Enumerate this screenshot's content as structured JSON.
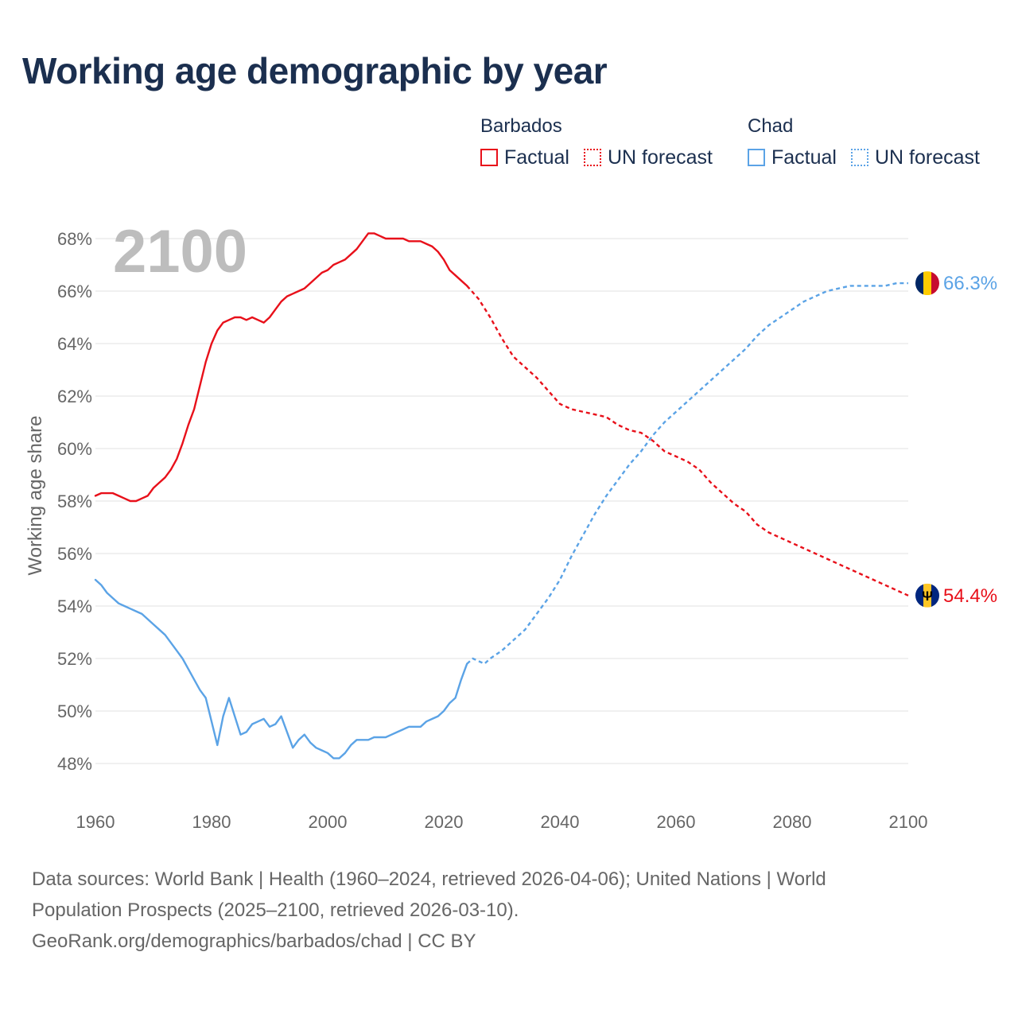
{
  "title": "Working age demographic by year",
  "year_label": "2100",
  "legend": {
    "groups": [
      {
        "name": "Barbados",
        "color": "#e8101a",
        "factual": "Factual",
        "forecast": "UN forecast"
      },
      {
        "name": "Chad",
        "color": "#5ba3e6",
        "factual": "Factual",
        "forecast": "UN forecast"
      }
    ]
  },
  "chart_data": {
    "type": "line",
    "title": "Working age demographic by year",
    "xlabel": "",
    "ylabel": "Working age share",
    "xlim": [
      1960,
      2100
    ],
    "ylim": [
      47.5,
      68.5
    ],
    "x_ticks": [
      "1960",
      "1980",
      "2000",
      "2020",
      "2040",
      "2060",
      "2080",
      "2100"
    ],
    "y_ticks": [
      "48%",
      "50%",
      "52%",
      "54%",
      "56%",
      "58%",
      "60%",
      "62%",
      "64%",
      "66%",
      "68%"
    ],
    "y_tick_values": [
      48,
      50,
      52,
      54,
      56,
      58,
      60,
      62,
      64,
      66,
      68
    ],
    "x_tick_values": [
      1960,
      1980,
      2000,
      2020,
      2040,
      2060,
      2080,
      2100
    ],
    "grid": true,
    "series": [
      {
        "name": "Barbados",
        "color": "#e8101a",
        "end_label": "54.4%",
        "factual_range": "1960–2024",
        "factual": {
          "x": [
            1960,
            1961,
            1962,
            1963,
            1964,
            1965,
            1966,
            1967,
            1968,
            1969,
            1970,
            1971,
            1972,
            1973,
            1974,
            1975,
            1976,
            1977,
            1978,
            1979,
            1980,
            1981,
            1982,
            1983,
            1984,
            1985,
            1986,
            1987,
            1988,
            1989,
            1990,
            1991,
            1992,
            1993,
            1994,
            1995,
            1996,
            1997,
            1998,
            1999,
            2000,
            2001,
            2002,
            2003,
            2004,
            2005,
            2006,
            2007,
            2008,
            2009,
            2010,
            2011,
            2012,
            2013,
            2014,
            2015,
            2016,
            2017,
            2018,
            2019,
            2020,
            2021,
            2022,
            2023,
            2024
          ],
          "y": [
            58.2,
            58.3,
            58.3,
            58.3,
            58.2,
            58.1,
            58.0,
            58.0,
            58.1,
            58.2,
            58.5,
            58.7,
            58.9,
            59.2,
            59.6,
            60.2,
            60.9,
            61.5,
            62.4,
            63.3,
            64.0,
            64.5,
            64.8,
            64.9,
            65.0,
            65.0,
            64.9,
            65.0,
            64.9,
            64.8,
            65.0,
            65.3,
            65.6,
            65.8,
            65.9,
            66.0,
            66.1,
            66.3,
            66.5,
            66.7,
            66.8,
            67.0,
            67.1,
            67.2,
            67.4,
            67.6,
            67.9,
            68.2,
            68.2,
            68.1,
            68.0,
            68.0,
            68.0,
            68.0,
            67.9,
            67.9,
            67.9,
            67.8,
            67.7,
            67.5,
            67.2,
            66.8,
            66.6,
            66.4,
            66.2
          ]
        },
        "forecast": {
          "x": [
            2024,
            2026,
            2028,
            2030,
            2032,
            2034,
            2036,
            2038,
            2040,
            2042,
            2044,
            2046,
            2048,
            2050,
            2052,
            2054,
            2056,
            2058,
            2060,
            2062,
            2064,
            2066,
            2068,
            2070,
            2072,
            2074,
            2076,
            2078,
            2080,
            2082,
            2084,
            2086,
            2088,
            2090,
            2092,
            2094,
            2096,
            2098,
            2100
          ],
          "y": [
            66.2,
            65.7,
            65.0,
            64.2,
            63.5,
            63.1,
            62.7,
            62.2,
            61.7,
            61.5,
            61.4,
            61.3,
            61.2,
            60.9,
            60.7,
            60.6,
            60.3,
            59.9,
            59.7,
            59.5,
            59.2,
            58.7,
            58.3,
            57.9,
            57.6,
            57.1,
            56.8,
            56.6,
            56.4,
            56.2,
            56.0,
            55.8,
            55.6,
            55.4,
            55.2,
            55.0,
            54.8,
            54.6,
            54.4
          ]
        }
      },
      {
        "name": "Chad",
        "color": "#5ba3e6",
        "end_label": "66.3%",
        "factual_range": "1960–2024",
        "factual": {
          "x": [
            1960,
            1961,
            1962,
            1963,
            1964,
            1965,
            1966,
            1967,
            1968,
            1969,
            1970,
            1971,
            1972,
            1973,
            1974,
            1975,
            1976,
            1977,
            1978,
            1979,
            1980,
            1981,
            1982,
            1983,
            1984,
            1985,
            1986,
            1987,
            1988,
            1989,
            1990,
            1991,
            1992,
            1993,
            1994,
            1995,
            1996,
            1997,
            1998,
            1999,
            2000,
            2001,
            2002,
            2003,
            2004,
            2005,
            2006,
            2007,
            2008,
            2009,
            2010,
            2011,
            2012,
            2013,
            2014,
            2015,
            2016,
            2017,
            2018,
            2019,
            2020,
            2021,
            2022,
            2023,
            2024
          ],
          "y": [
            55.0,
            54.8,
            54.5,
            54.3,
            54.1,
            54.0,
            53.9,
            53.8,
            53.7,
            53.5,
            53.3,
            53.1,
            52.9,
            52.6,
            52.3,
            52.0,
            51.6,
            51.2,
            50.8,
            50.5,
            49.6,
            48.7,
            49.8,
            50.5,
            49.8,
            49.1,
            49.2,
            49.5,
            49.6,
            49.7,
            49.4,
            49.5,
            49.8,
            49.2,
            48.6,
            48.9,
            49.1,
            48.8,
            48.6,
            48.5,
            48.4,
            48.2,
            48.2,
            48.4,
            48.7,
            48.9,
            48.9,
            48.9,
            49.0,
            49.0,
            49.0,
            49.1,
            49.2,
            49.3,
            49.4,
            49.4,
            49.4,
            49.6,
            49.7,
            49.8,
            50.0,
            50.3,
            50.5,
            51.2,
            51.8
          ]
        },
        "forecast": {
          "x": [
            2024,
            2025,
            2026,
            2027,
            2028,
            2030,
            2032,
            2034,
            2036,
            2038,
            2040,
            2042,
            2044,
            2046,
            2048,
            2050,
            2052,
            2054,
            2056,
            2058,
            2060,
            2062,
            2064,
            2066,
            2068,
            2070,
            2072,
            2074,
            2076,
            2078,
            2080,
            2082,
            2084,
            2086,
            2088,
            2090,
            2092,
            2094,
            2096,
            2098,
            2100
          ],
          "y": [
            51.8,
            52.0,
            51.9,
            51.8,
            52.0,
            52.3,
            52.7,
            53.1,
            53.7,
            54.3,
            55.0,
            55.9,
            56.7,
            57.5,
            58.2,
            58.8,
            59.4,
            59.9,
            60.5,
            61.0,
            61.4,
            61.8,
            62.2,
            62.6,
            63.0,
            63.4,
            63.8,
            64.3,
            64.7,
            65.0,
            65.3,
            65.6,
            65.8,
            66.0,
            66.1,
            66.2,
            66.2,
            66.2,
            66.2,
            66.3,
            66.3
          ]
        }
      }
    ]
  },
  "footer": {
    "line1": "Data sources: World Bank | Health (1960–2024, retrieved 2026-04-06); United Nations | World",
    "line2": "Population Prospects (2025–2100, retrieved 2026-03-10).",
    "line3": "GeoRank.org/demographics/barbados/chad | CC BY"
  }
}
